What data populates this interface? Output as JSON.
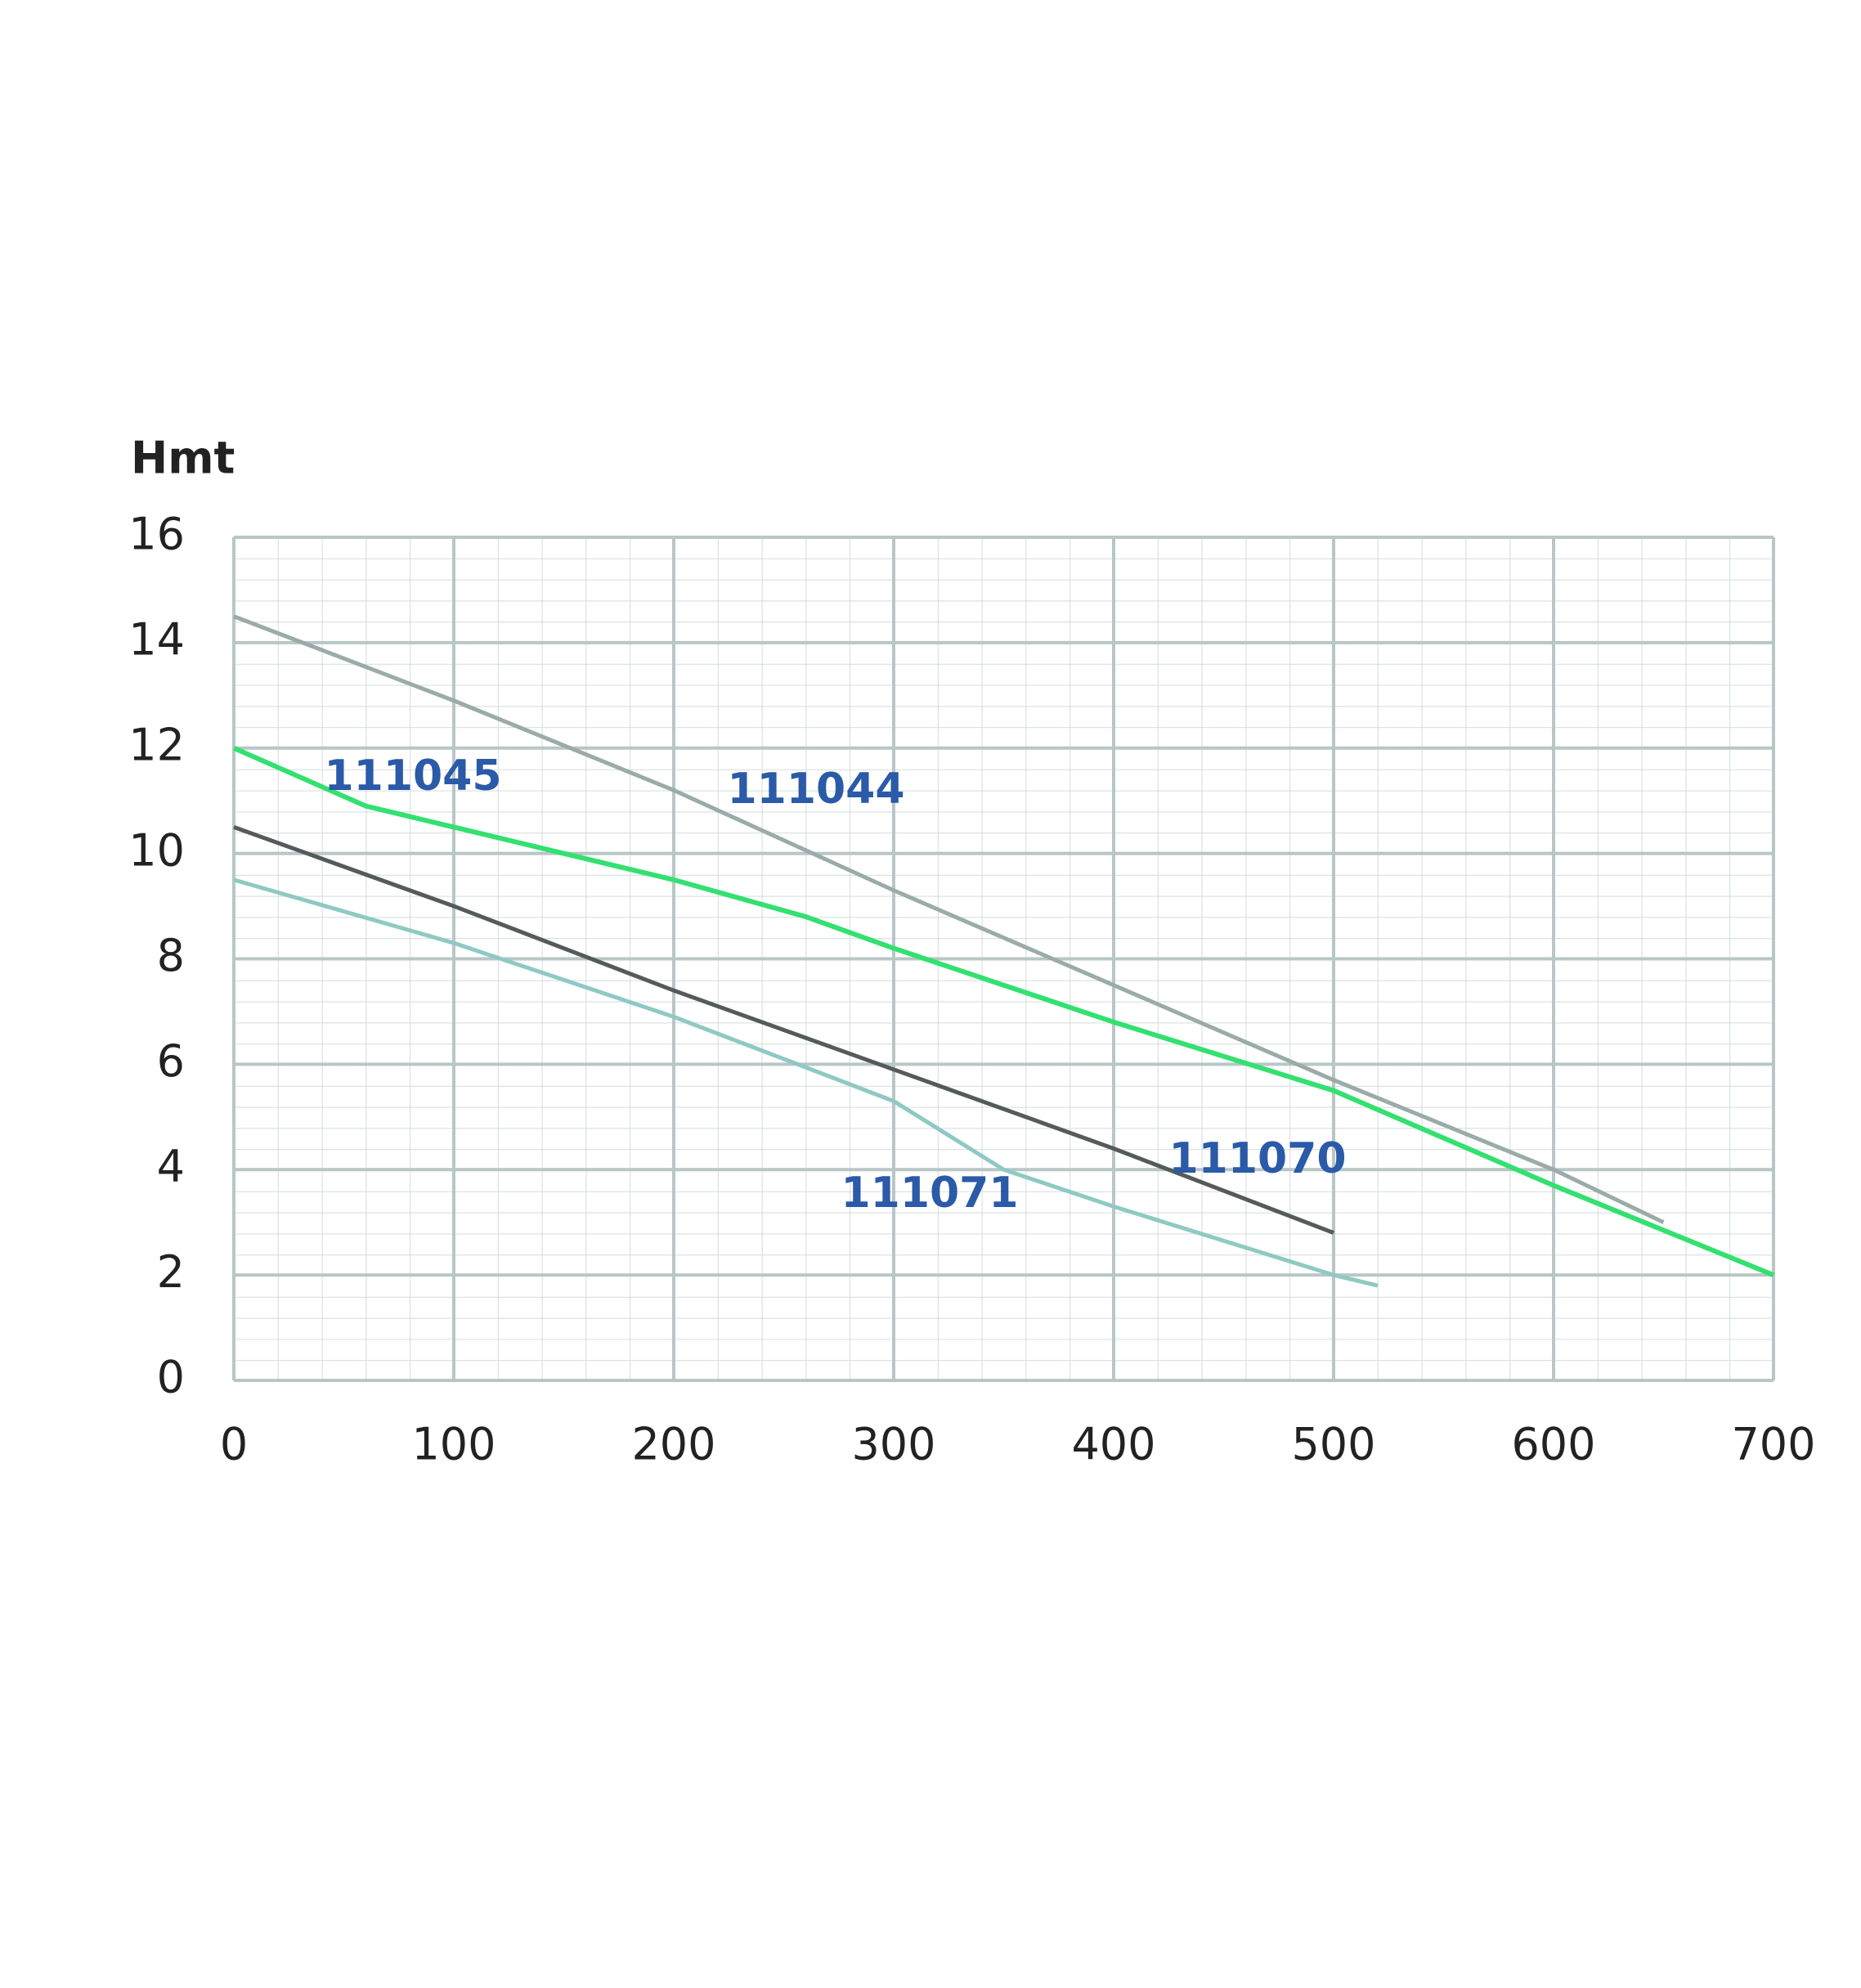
{
  "chart_data": {
    "type": "line",
    "y_label": "Hmt",
    "xlim": [
      0,
      700
    ],
    "xticks": [
      0,
      100,
      200,
      300,
      400,
      500,
      600,
      700
    ],
    "ylim": [
      0,
      16
    ],
    "yticks": [
      0,
      2,
      4,
      6,
      8,
      10,
      12,
      14,
      16
    ],
    "grid": true,
    "series": [
      {
        "name": "111044",
        "color": "#9aaba8",
        "x": [
          0,
          100,
          200,
          300,
          400,
          500,
          600,
          650
        ],
        "values": [
          14.5,
          12.9,
          11.2,
          9.3,
          7.5,
          5.7,
          4,
          3
        ]
      },
      {
        "name": "111045",
        "color": "#33e070",
        "x": [
          0,
          60,
          100,
          200,
          260,
          300,
          400,
          500,
          600,
          700
        ],
        "values": [
          12,
          10.9,
          10.5,
          9.5,
          8.8,
          8.2,
          6.8,
          5.5,
          3.7,
          2
        ]
      },
      {
        "name": "111070",
        "color": "#555a5a",
        "x": [
          0,
          100,
          200,
          300,
          400,
          500
        ],
        "values": [
          10.5,
          9,
          7.4,
          5.9,
          4.4,
          2.8
        ]
      },
      {
        "name": "111071",
        "color": "#8fc9c4",
        "x": [
          0,
          100,
          200,
          300,
          350,
          400,
          500,
          520
        ],
        "values": [
          9.5,
          8.3,
          6.9,
          5.3,
          4,
          3.3,
          2,
          1.8
        ]
      }
    ]
  }
}
